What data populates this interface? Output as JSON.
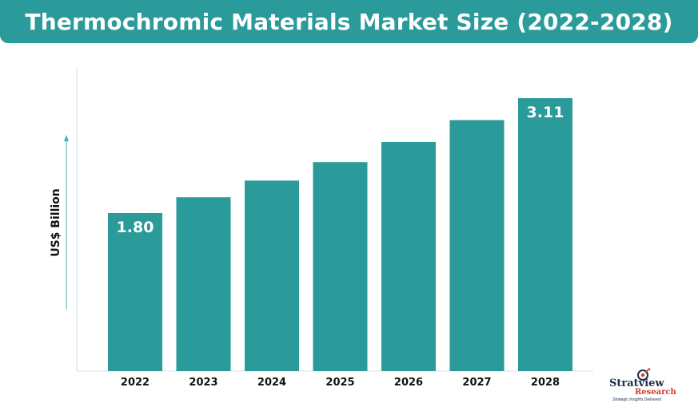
{
  "colors": {
    "title_bg": "#2a9a9a",
    "bar": "#2a9a9a",
    "axis": "#cde8e8",
    "text": "#111111",
    "bar_label": "#ffffff"
  },
  "chart_data": {
    "type": "bar",
    "title": "Thermochromic Materials Market Size (2022-2028)",
    "xlabel": "",
    "ylabel": "US$ Billion",
    "categories": [
      "2022",
      "2023",
      "2024",
      "2025",
      "2026",
      "2027",
      "2028"
    ],
    "values": [
      1.8,
      1.98,
      2.17,
      2.38,
      2.61,
      2.86,
      3.11
    ],
    "data_labels": [
      "1.80",
      "",
      "",
      "",
      "",
      "",
      "3.11"
    ],
    "ylim": [
      0,
      3.4
    ],
    "y_ticks_shown": false,
    "grid": false,
    "legend": "none",
    "y_axis_arrow": "up"
  },
  "logo": {
    "name": "Stratview",
    "sub": "Research",
    "tagline": "Strategic Insights Delivered",
    "mark_icon": "magnifier-target-icon"
  }
}
